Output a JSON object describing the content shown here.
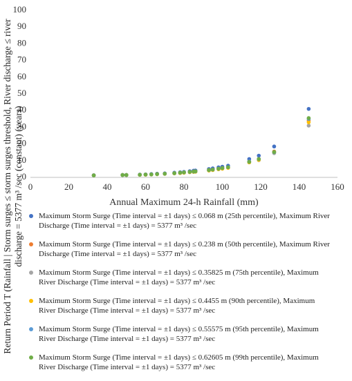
{
  "chart_data": {
    "type": "scatter",
    "x_label": "Annual Maximum 24-h Rainfall (mm)",
    "y_label": "Return Period T (Rainfall | Storm surges ≤ storm surges threshold, River discharge ≤ river discharge = 5377 m³ /sec (constant) (years)",
    "x": [
      33,
      48,
      50,
      57,
      60,
      63,
      66,
      70,
      75,
      78,
      80,
      83,
      85,
      86,
      93,
      95,
      98,
      100,
      103,
      114,
      119,
      127,
      145
    ],
    "series": [
      {
        "name": "Maximum Storm Surge  (Time interval = ±1 days) ≤ 0.068 m (25th percentile), Maximum River Discharge  (Time interval = ±1 days) = 5377 m³ /sec",
        "color": "#4472c4",
        "values": [
          1.3,
          1.5,
          1.5,
          1.7,
          1.8,
          2.0,
          2.2,
          2.4,
          2.8,
          3.1,
          3.3,
          3.7,
          4.0,
          4.1,
          5.0,
          5.4,
          6.0,
          6.4,
          7.0,
          11,
          13,
          18.5,
          41
        ]
      },
      {
        "name": "Maximum Storm Surge  (Time interval = ±1 days) ≤ 0.238 m (50th percentile), Maximum River Discharge  (Time interval = ±1 days) = 5377 m³ /sec",
        "color": "#ed7d31",
        "values": [
          1.2,
          1.4,
          1.4,
          1.6,
          1.7,
          1.8,
          2.0,
          2.2,
          2.5,
          2.8,
          3.0,
          3.3,
          3.5,
          3.6,
          4.4,
          4.7,
          5.2,
          5.6,
          6.1,
          9.5,
          11,
          15.5,
          34
        ]
      },
      {
        "name": "Maximum Storm Surge  (Time interval = ±1 days) ≤ 0.35825 m (75th percentile), Maximum River Discharge  (Time interval = ±1 days) = 5377 m³ /sec",
        "color": "#a5a5a5",
        "values": [
          1.2,
          1.4,
          1.4,
          1.5,
          1.6,
          1.7,
          1.9,
          2.1,
          2.4,
          2.6,
          2.8,
          3.1,
          3.3,
          3.4,
          4.1,
          4.4,
          4.9,
          5.2,
          5.7,
          9,
          10.3,
          14.5,
          31
        ]
      },
      {
        "name": "Maximum Storm Surge  (Time interval = ±1 days) ≤ 0.4455 m (90th percentile), Maximum River Discharge  (Time interval = ±1 days) = 5377 m³ /sec",
        "color": "#ffc000",
        "values": [
          1.2,
          1.4,
          1.4,
          1.5,
          1.6,
          1.7,
          1.9,
          2.1,
          2.4,
          2.6,
          2.8,
          3.1,
          3.3,
          3.4,
          4.1,
          4.4,
          4.9,
          5.2,
          5.7,
          9,
          10.5,
          15,
          33
        ]
      },
      {
        "name": "Maximum Storm Surge  (Time interval = ±1 days) ≤ 0.55575 m (95th percentile), Maximum River Discharge  (Time interval = ±1 days) = 5377 m³ /sec",
        "color": "#5b9bd5",
        "values": [
          1.2,
          1.4,
          1.4,
          1.6,
          1.7,
          1.8,
          2.0,
          2.2,
          2.5,
          2.8,
          3.0,
          3.3,
          3.5,
          3.6,
          4.4,
          4.7,
          5.2,
          5.6,
          6.1,
          9.5,
          11,
          15,
          35
        ]
      },
      {
        "name": "Maximum Storm Surge  (Time interval = ±1 days) ≤ 0.62605 m (99th percentile), Maximum River Discharge  (Time interval = ±1 days) = 5377 m³ /sec",
        "color": "#70ad47",
        "values": [
          1.2,
          1.4,
          1.4,
          1.6,
          1.7,
          1.8,
          2.0,
          2.2,
          2.5,
          2.8,
          3.0,
          3.3,
          3.5,
          3.6,
          4.4,
          4.7,
          5.2,
          5.6,
          6.1,
          9.3,
          11,
          15.2,
          35.5
        ]
      }
    ],
    "xlim": [
      0,
      160
    ],
    "xticks": [
      0,
      20,
      40,
      60,
      80,
      100,
      120,
      140,
      160
    ],
    "ylim": [
      0,
      100
    ],
    "yticks": [
      0,
      10,
      20,
      30,
      40,
      50,
      60,
      70,
      80,
      90,
      100
    ],
    "grid": false,
    "legend": "bottom"
  }
}
